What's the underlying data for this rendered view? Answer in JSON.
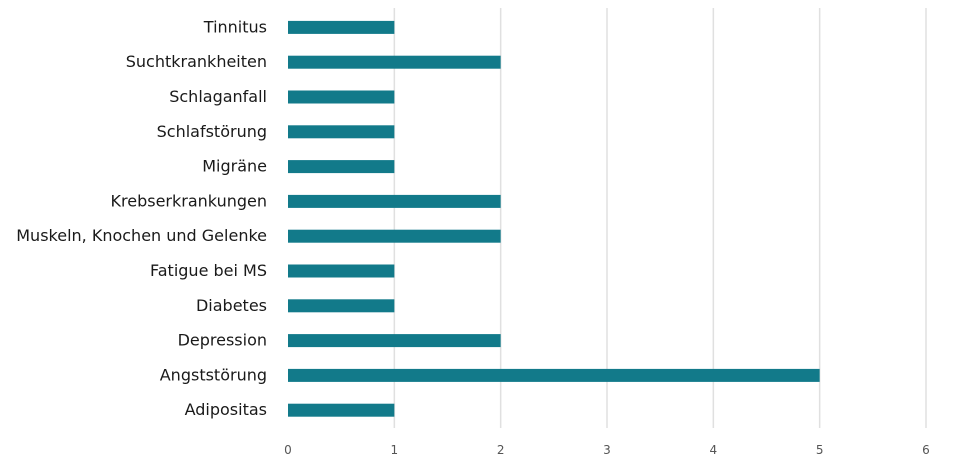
{
  "chart_data": {
    "type": "bar",
    "orientation": "horizontal",
    "categories": [
      "Tinnitus",
      "Suchtkrankheiten",
      "Schlaganfall",
      "Schlafstörung",
      "Migräne",
      "Krebserkrankungen",
      "Muskeln, Knochen und Gelenke",
      "Fatigue bei MS",
      "Diabetes",
      "Depression",
      "Angststörung",
      "Adipositas"
    ],
    "values": [
      1,
      2,
      1,
      1,
      1,
      2,
      2,
      1,
      1,
      2,
      5,
      1
    ],
    "xlim": [
      0,
      6
    ],
    "xticks": [
      0,
      1,
      2,
      3,
      4,
      5,
      6
    ],
    "grid": "vertical",
    "legend": "none",
    "bar_color": "#127a8a",
    "grid_color": "#e0e0e0"
  }
}
